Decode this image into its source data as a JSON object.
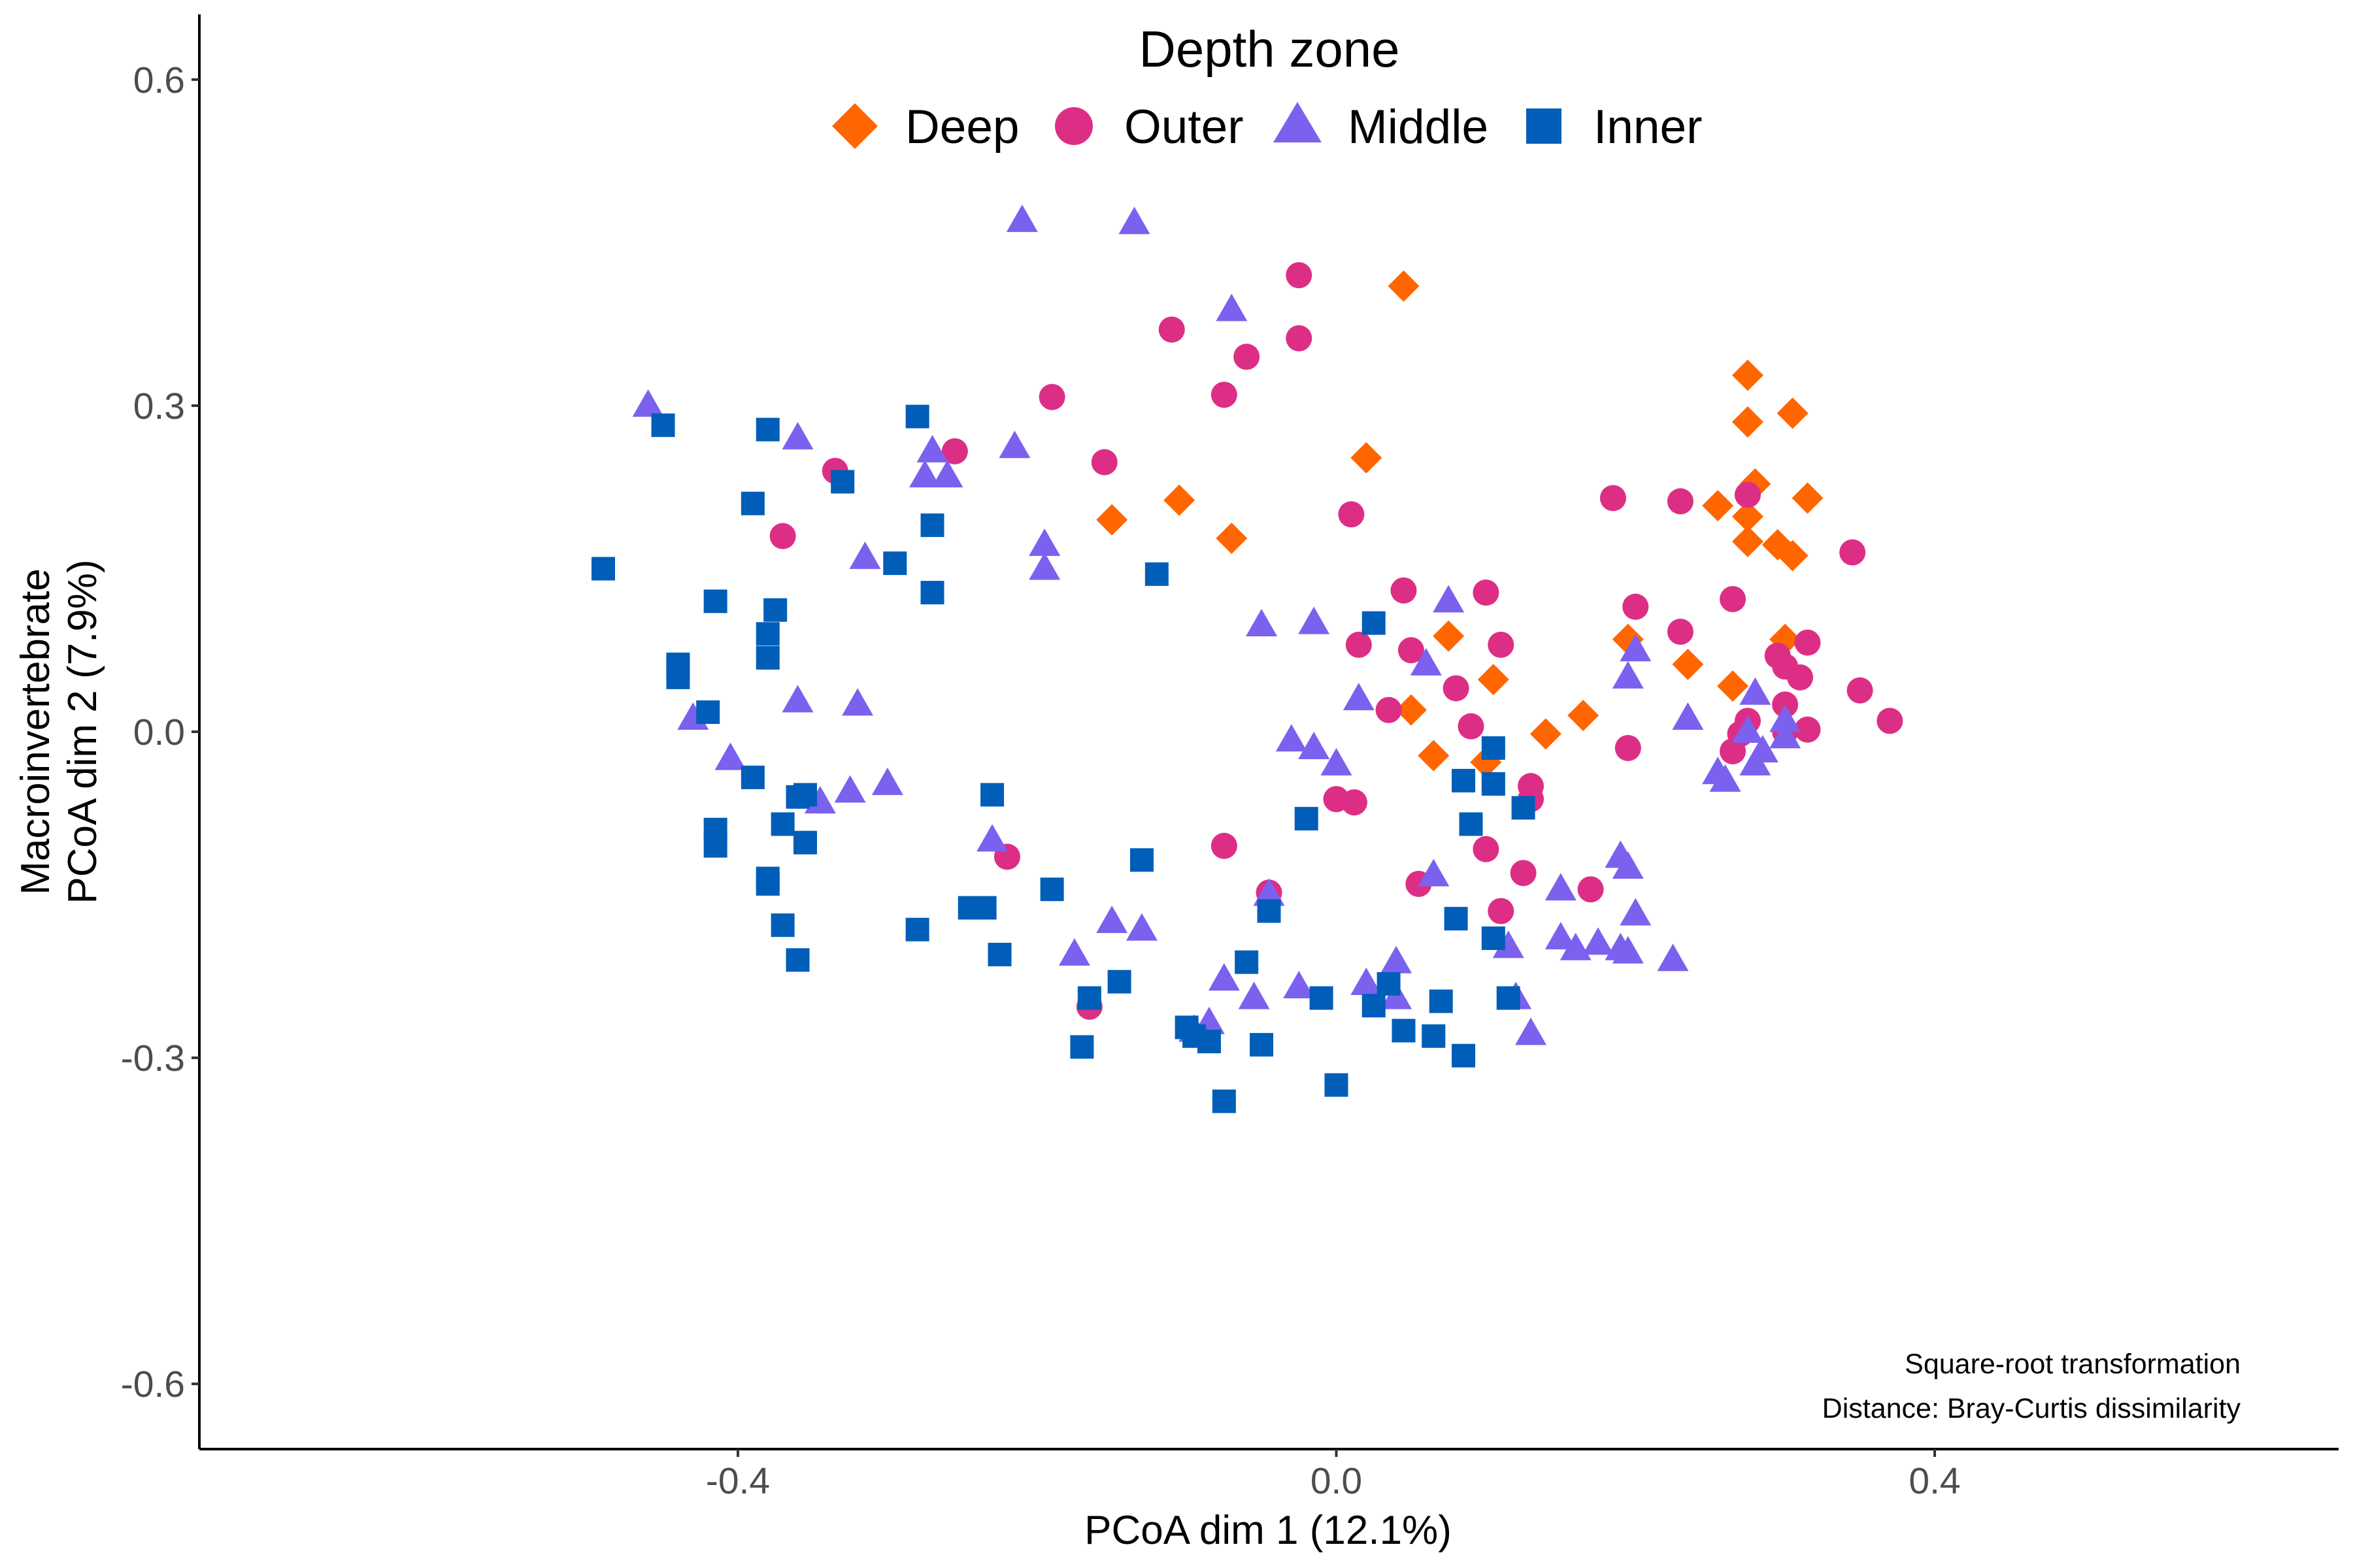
{
  "chart_data": {
    "type": "scatter",
    "xlabel": "PCoA dim 1 (12.1%)",
    "ylabel_line1": "Macroinvertebrate",
    "ylabel_line2": "PCoA dim 2 (7.9%)",
    "xlim": [
      -0.76,
      0.67
    ],
    "ylim": [
      -0.66,
      0.66
    ],
    "x_ticks": [
      -0.4,
      0.0,
      0.4
    ],
    "x_tick_labels": [
      "-0.4",
      "0.0",
      "0.4"
    ],
    "y_ticks": [
      -0.6,
      -0.3,
      0.0,
      0.3,
      0.6
    ],
    "y_tick_labels": [
      "-0.6",
      "-0.3",
      "0.0",
      "0.3",
      "0.6"
    ],
    "grid": false,
    "legend": {
      "title": "Depth zone",
      "position": "top-center",
      "entries": [
        "Deep",
        "Outer",
        "Middle",
        "Inner"
      ]
    },
    "annotations": [
      "Square-root transformation",
      "Distance: Bray-Curtis dissimilarity"
    ],
    "series": [
      {
        "name": "Deep",
        "color": "#FF6600",
        "marker": "diamond",
        "points": [
          [
            0.045,
            0.41
          ],
          [
            0.02,
            0.252
          ],
          [
            -0.15,
            0.195
          ],
          [
            -0.105,
            0.213
          ],
          [
            -0.07,
            0.178
          ],
          [
            0.275,
            0.328
          ],
          [
            0.305,
            0.293
          ],
          [
            0.275,
            0.285
          ],
          [
            0.28,
            0.228
          ],
          [
            0.255,
            0.208
          ],
          [
            0.275,
            0.198
          ],
          [
            0.315,
            0.215
          ],
          [
            0.275,
            0.175
          ],
          [
            0.295,
            0.172
          ],
          [
            0.305,
            0.162
          ],
          [
            0.3,
            0.085
          ],
          [
            0.195,
            0.085
          ],
          [
            0.235,
            0.062
          ],
          [
            0.265,
            0.042
          ],
          [
            0.075,
            0.088
          ],
          [
            0.105,
            0.048
          ],
          [
            0.05,
            0.02
          ],
          [
            0.065,
            -0.022
          ],
          [
            0.1,
            -0.028
          ],
          [
            0.14,
            -0.002
          ],
          [
            0.165,
            0.015
          ]
        ]
      },
      {
        "name": "Outer",
        "color": "#DD2E86",
        "marker": "circle",
        "points": [
          [
            -0.025,
            0.42
          ],
          [
            -0.11,
            0.37
          ],
          [
            -0.06,
            0.345
          ],
          [
            -0.025,
            0.362
          ],
          [
            -0.075,
            0.31
          ],
          [
            -0.19,
            0.308
          ],
          [
            -0.335,
            0.24
          ],
          [
            -0.255,
            0.258
          ],
          [
            -0.155,
            0.248
          ],
          [
            0.01,
            0.2
          ],
          [
            -0.37,
            0.18
          ],
          [
            0.185,
            0.215
          ],
          [
            0.23,
            0.212
          ],
          [
            0.275,
            0.218
          ],
          [
            0.345,
            0.165
          ],
          [
            0.045,
            0.13
          ],
          [
            0.1,
            0.128
          ],
          [
            0.265,
            0.122
          ],
          [
            0.2,
            0.115
          ],
          [
            0.23,
            0.092
          ],
          [
            0.015,
            0.08
          ],
          [
            0.05,
            0.075
          ],
          [
            0.11,
            0.08
          ],
          [
            0.315,
            0.082
          ],
          [
            0.295,
            0.07
          ],
          [
            0.3,
            0.06
          ],
          [
            0.31,
            0.05
          ],
          [
            0.35,
            0.038
          ],
          [
            0.08,
            0.04
          ],
          [
            0.035,
            0.02
          ],
          [
            0.3,
            0.025
          ],
          [
            0.275,
            0.01
          ],
          [
            0.27,
            -0.002
          ],
          [
            0.37,
            0.01
          ],
          [
            0.315,
            0.002
          ],
          [
            0.3,
            0.0
          ],
          [
            0.09,
            0.005
          ],
          [
            0.195,
            -0.015
          ],
          [
            0.265,
            -0.018
          ],
          [
            0.13,
            -0.05
          ],
          [
            0.13,
            -0.062
          ],
          [
            0.0,
            -0.062
          ],
          [
            0.012,
            -0.065
          ],
          [
            -0.075,
            -0.105
          ],
          [
            0.1,
            -0.108
          ],
          [
            -0.22,
            -0.115
          ],
          [
            0.125,
            -0.13
          ],
          [
            0.055,
            -0.14
          ],
          [
            0.17,
            -0.145
          ],
          [
            -0.045,
            -0.148
          ],
          [
            0.11,
            -0.165
          ],
          [
            -0.165,
            -0.253
          ]
        ]
      },
      {
        "name": "Middle",
        "color": "#7B61EE",
        "marker": "triangle",
        "points": [
          [
            -0.21,
            0.47
          ],
          [
            -0.135,
            0.468
          ],
          [
            -0.07,
            0.388
          ],
          [
            -0.46,
            0.3
          ],
          [
            -0.36,
            0.27
          ],
          [
            -0.27,
            0.258
          ],
          [
            -0.215,
            0.262
          ],
          [
            -0.275,
            0.235
          ],
          [
            -0.26,
            0.235
          ],
          [
            -0.195,
            0.172
          ],
          [
            -0.195,
            0.15
          ],
          [
            -0.315,
            0.16
          ],
          [
            -0.05,
            0.098
          ],
          [
            -0.015,
            0.1
          ],
          [
            0.075,
            0.12
          ],
          [
            0.06,
            0.062
          ],
          [
            0.015,
            0.03
          ],
          [
            0.2,
            0.075
          ],
          [
            0.195,
            0.05
          ],
          [
            0.235,
            0.012
          ],
          [
            0.28,
            0.035
          ],
          [
            0.275,
            0.0
          ],
          [
            0.3,
            0.01
          ],
          [
            0.3,
            -0.005
          ],
          [
            0.285,
            -0.018
          ],
          [
            0.255,
            -0.038
          ],
          [
            0.26,
            -0.045
          ],
          [
            0.28,
            -0.03
          ],
          [
            -0.36,
            0.028
          ],
          [
            -0.32,
            0.025
          ],
          [
            -0.43,
            0.012
          ],
          [
            -0.405,
            -0.025
          ],
          [
            -0.345,
            -0.065
          ],
          [
            -0.325,
            -0.055
          ],
          [
            -0.3,
            -0.048
          ],
          [
            -0.03,
            -0.008
          ],
          [
            -0.015,
            -0.015
          ],
          [
            0.0,
            -0.03
          ],
          [
            -0.23,
            -0.1
          ],
          [
            -0.175,
            -0.205
          ],
          [
            -0.15,
            -0.175
          ],
          [
            -0.13,
            -0.182
          ],
          [
            -0.045,
            -0.15
          ],
          [
            0.065,
            -0.132
          ],
          [
            0.15,
            -0.145
          ],
          [
            0.19,
            -0.115
          ],
          [
            0.195,
            -0.125
          ],
          [
            0.2,
            -0.168
          ],
          [
            0.15,
            -0.19
          ],
          [
            0.16,
            -0.2
          ],
          [
            0.175,
            -0.195
          ],
          [
            0.19,
            -0.2
          ],
          [
            0.195,
            -0.203
          ],
          [
            0.225,
            -0.21
          ],
          [
            0.115,
            -0.198
          ],
          [
            -0.075,
            -0.228
          ],
          [
            -0.055,
            -0.245
          ],
          [
            -0.025,
            -0.235
          ],
          [
            0.02,
            -0.232
          ],
          [
            0.04,
            -0.212
          ],
          [
            0.04,
            -0.245
          ],
          [
            0.12,
            -0.245
          ],
          [
            0.13,
            -0.278
          ],
          [
            -0.085,
            -0.268
          ],
          [
            -0.095,
            -0.275
          ]
        ]
      },
      {
        "name": "Inner",
        "color": "#005EB8",
        "marker": "square",
        "points": [
          [
            -0.45,
            0.282
          ],
          [
            -0.38,
            0.278
          ],
          [
            -0.28,
            0.29
          ],
          [
            -0.33,
            0.23
          ],
          [
            -0.39,
            0.21
          ],
          [
            -0.27,
            0.19
          ],
          [
            -0.295,
            0.155
          ],
          [
            -0.12,
            0.145
          ],
          [
            -0.49,
            0.15
          ],
          [
            -0.27,
            0.128
          ],
          [
            -0.415,
            0.12
          ],
          [
            -0.375,
            0.112
          ],
          [
            -0.38,
            0.09
          ],
          [
            -0.38,
            0.068
          ],
          [
            -0.44,
            0.062
          ],
          [
            -0.44,
            0.06
          ],
          [
            -0.44,
            0.05
          ],
          [
            -0.42,
            0.018
          ],
          [
            -0.39,
            -0.042
          ],
          [
            -0.36,
            -0.06
          ],
          [
            -0.355,
            -0.058
          ],
          [
            -0.23,
            -0.058
          ],
          [
            -0.37,
            -0.085
          ],
          [
            -0.355,
            -0.102
          ],
          [
            -0.415,
            -0.09
          ],
          [
            -0.415,
            -0.105
          ],
          [
            -0.38,
            -0.135
          ],
          [
            -0.38,
            -0.14
          ],
          [
            -0.37,
            -0.178
          ],
          [
            -0.36,
            -0.21
          ],
          [
            -0.28,
            -0.182
          ],
          [
            -0.245,
            -0.162
          ],
          [
            -0.235,
            -0.162
          ],
          [
            -0.19,
            -0.145
          ],
          [
            -0.225,
            -0.205
          ],
          [
            -0.13,
            -0.118
          ],
          [
            -0.02,
            -0.08
          ],
          [
            -0.045,
            -0.165
          ],
          [
            -0.06,
            -0.212
          ],
          [
            -0.145,
            -0.23
          ],
          [
            -0.165,
            -0.245
          ],
          [
            -0.17,
            -0.29
          ],
          [
            -0.1,
            -0.272
          ],
          [
            -0.085,
            -0.285
          ],
          [
            -0.095,
            -0.28
          ],
          [
            -0.05,
            -0.288
          ],
          [
            -0.075,
            -0.34
          ],
          [
            -0.01,
            -0.245
          ],
          [
            0.0,
            -0.325
          ],
          [
            0.035,
            -0.232
          ],
          [
            0.025,
            -0.252
          ],
          [
            0.045,
            -0.275
          ],
          [
            0.065,
            -0.28
          ],
          [
            0.07,
            -0.248
          ],
          [
            0.085,
            -0.298
          ],
          [
            0.08,
            -0.172
          ],
          [
            0.085,
            -0.045
          ],
          [
            0.105,
            -0.048
          ],
          [
            0.105,
            -0.015
          ],
          [
            0.09,
            -0.085
          ],
          [
            0.105,
            -0.19
          ],
          [
            0.115,
            -0.245
          ],
          [
            0.125,
            -0.07
          ],
          [
            0.025,
            0.1
          ]
        ]
      }
    ]
  }
}
